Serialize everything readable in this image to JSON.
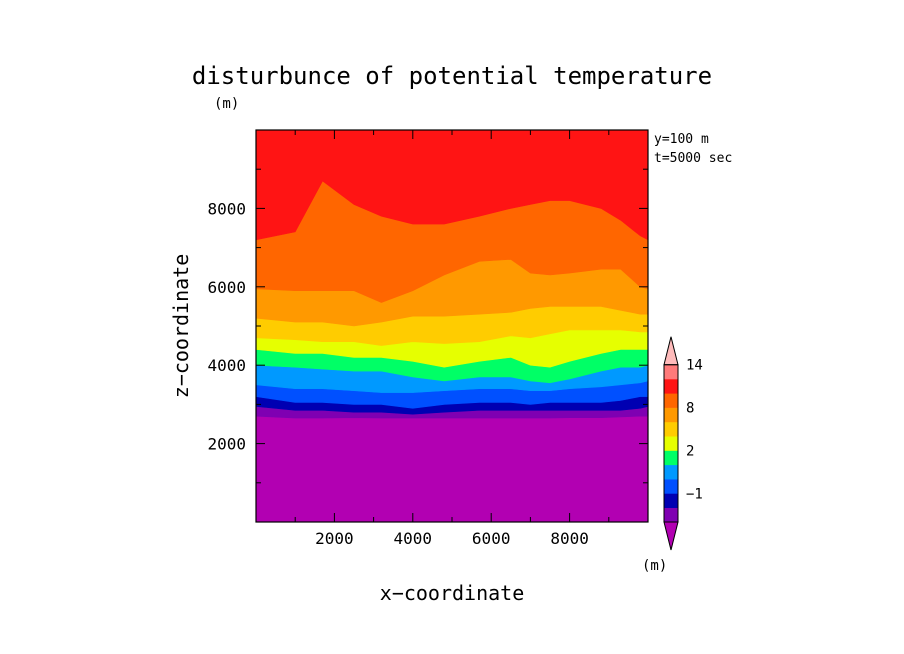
{
  "chart_data": {
    "type": "heatmap",
    "subtype": "filled-contour",
    "title": "disturbunce of potential temperature",
    "unit_label": "(m)",
    "xlabel": "x−coordinate",
    "ylabel": "z−coordinate",
    "annotations": [
      "y=100 m",
      "t=5000 sec"
    ],
    "xlim": [
      0,
      10000
    ],
    "ylim": [
      0,
      10000
    ],
    "x_ticks": [
      2000,
      4000,
      6000,
      8000
    ],
    "y_ticks": [
      2000,
      4000,
      6000,
      8000
    ],
    "x_tick_labels": [
      "2000",
      "4000",
      "6000",
      "8000"
    ],
    "y_tick_labels": [
      "2000",
      "4000",
      "6000",
      "8000"
    ],
    "grid": false,
    "legend": {
      "placement": "right-bottom",
      "unit_label": "(m)",
      "tick_labels": [
        "14",
        "8",
        "2",
        "−1"
      ],
      "tick_levels": [
        14,
        8,
        2,
        -1
      ],
      "extends": "both",
      "levels": [
        -2,
        -1,
        0,
        1,
        2,
        4,
        6,
        8,
        10,
        12,
        14,
        16
      ]
    },
    "colors": [
      "#b200b2",
      "#7f00b2",
      "#0000b2",
      "#0050ff",
      "#0099ff",
      "#00ff66",
      "#e6ff00",
      "#ffcc00",
      "#ff9900",
      "#ff6600",
      "#ff1414",
      "#ff7a7a",
      "#ffbbbb"
    ],
    "x": [
      0,
      1000,
      1700,
      2500,
      3200,
      4000,
      4800,
      5700,
      6500,
      7000,
      7500,
      8000,
      8800,
      9300,
      9800,
      10000
    ],
    "boundaries": [
      {
        "level": -1,
        "z": [
          2700,
          2650,
          2650,
          2660,
          2650,
          2650,
          2650,
          2650,
          2650,
          2650,
          2650,
          2660,
          2660,
          2680,
          2700,
          2700
        ]
      },
      {
        "level": 0,
        "z": [
          2950,
          2850,
          2850,
          2800,
          2800,
          2750,
          2800,
          2850,
          2850,
          2850,
          2850,
          2850,
          2850,
          2850,
          2900,
          2950
        ]
      },
      {
        "level": 1,
        "z": [
          3200,
          3050,
          3050,
          3000,
          3000,
          2900,
          3000,
          3050,
          3050,
          3000,
          3050,
          3050,
          3050,
          3100,
          3200,
          3200
        ]
      },
      {
        "level": 2,
        "z": [
          3500,
          3400,
          3400,
          3350,
          3300,
          3300,
          3350,
          3400,
          3400,
          3350,
          3350,
          3400,
          3450,
          3500,
          3550,
          3600
        ]
      },
      {
        "level": 4,
        "z": [
          4000,
          3950,
          3900,
          3850,
          3850,
          3700,
          3600,
          3700,
          3700,
          3600,
          3550,
          3650,
          3850,
          3950,
          3950,
          4000
        ]
      },
      {
        "level": 6,
        "z": [
          4400,
          4300,
          4300,
          4200,
          4200,
          4100,
          3950,
          4100,
          4200,
          4000,
          3950,
          4100,
          4300,
          4400,
          4400,
          4400
        ]
      },
      {
        "level": 8,
        "z": [
          4700,
          4650,
          4600,
          4600,
          4500,
          4600,
          4550,
          4600,
          4750,
          4700,
          4800,
          4900,
          4900,
          4900,
          4850,
          4850
        ]
      },
      {
        "level": 10,
        "z": [
          5200,
          5100,
          5100,
          5000,
          5100,
          5250,
          5250,
          5300,
          5350,
          5450,
          5500,
          5500,
          5500,
          5400,
          5300,
          5300
        ]
      },
      {
        "level": 12,
        "z": [
          5950,
          5900,
          5900,
          5900,
          5600,
          5900,
          6300,
          6650,
          6700,
          6350,
          6300,
          6350,
          6450,
          6450,
          6000,
          5950
        ]
      },
      {
        "level": 14,
        "z": [
          7200,
          7400,
          8700,
          8100,
          7800,
          7600,
          7600,
          7800,
          8000,
          8100,
          8200,
          8200,
          8000,
          7700,
          7300,
          7200
        ]
      }
    ]
  }
}
